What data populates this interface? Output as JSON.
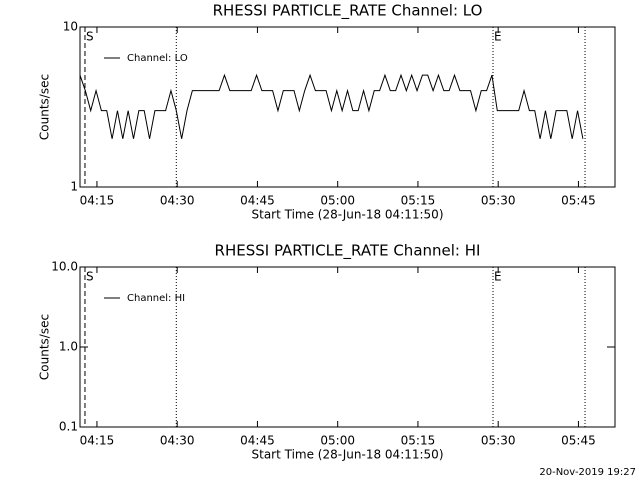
{
  "chart_data": [
    {
      "type": "line",
      "title": "RHESSI PARTICLE_RATE Channel: LO",
      "xlabel": "Start Time (28-Jun-18 04:11:50)",
      "ylabel": "Counts/sec",
      "xlim": [
        0,
        100
      ],
      "xticks": [
        {
          "value": 3.1667,
          "label": "04:15"
        },
        {
          "value": 18.1667,
          "label": "04:30"
        },
        {
          "value": 33.1667,
          "label": "04:45"
        },
        {
          "value": 48.1667,
          "label": "05:00"
        },
        {
          "value": 63.1667,
          "label": "05:15"
        },
        {
          "value": 78.1667,
          "label": "05:30"
        },
        {
          "value": 93.1667,
          "label": "05:45"
        }
      ],
      "ylim": [
        1,
        10
      ],
      "yticks": [
        1,
        10
      ],
      "log_y": true,
      "markers": [
        {
          "x": 0.93,
          "label": "S",
          "style": "dashed"
        },
        {
          "x": 18,
          "style": "dotted"
        },
        {
          "x": 77.2,
          "label": "E",
          "style": "dotted"
        },
        {
          "x": 94.4,
          "style": "dotted"
        }
      ],
      "x": [
        0,
        1,
        2,
        3,
        4,
        5,
        6,
        7,
        8,
        9,
        10,
        11,
        12,
        13,
        14,
        15,
        16,
        17,
        18,
        19,
        20,
        21,
        22,
        23,
        24,
        25,
        26,
        27,
        28,
        29,
        30,
        31,
        32,
        33,
        34,
        35,
        36,
        37,
        38,
        39,
        40,
        41,
        42,
        43,
        44,
        45,
        46,
        47,
        48,
        49,
        50,
        51,
        52,
        53,
        54,
        55,
        56,
        57,
        58,
        59,
        60,
        61,
        62,
        63,
        64,
        65,
        66,
        67,
        68,
        69,
        70,
        71,
        72,
        73,
        74,
        75,
        76,
        77,
        78,
        79,
        80,
        81,
        82,
        83,
        84,
        85,
        86,
        87,
        88,
        89,
        90,
        91,
        92,
        93,
        94
      ],
      "series": [
        {
          "name": "Channel: LO",
          "color": "#000000",
          "values": [
            5,
            4,
            3,
            4,
            3,
            3,
            2,
            3,
            2,
            3,
            2,
            3,
            3,
            2,
            3,
            3,
            3,
            4,
            3,
            2,
            3,
            4,
            4,
            4,
            4,
            4,
            4,
            5,
            4,
            4,
            4,
            4,
            4,
            5,
            4,
            4,
            4,
            3,
            4,
            4,
            4,
            3,
            4,
            5,
            4,
            4,
            4,
            3,
            4,
            3,
            4,
            3,
            3,
            4,
            3,
            4,
            4,
            5,
            4,
            4,
            5,
            4,
            5,
            4,
            5,
            5,
            4,
            5,
            4,
            4,
            5,
            4,
            4,
            4,
            3,
            4,
            4,
            5,
            3,
            3,
            3,
            3,
            3,
            4,
            3,
            3,
            2,
            3,
            2,
            3,
            3,
            3,
            2,
            3,
            2
          ]
        }
      ]
    },
    {
      "type": "line",
      "title": "RHESSI PARTICLE_RATE Channel: HI",
      "xlabel": "Start Time (28-Jun-18 04:11:50)",
      "ylabel": "Counts/sec",
      "xlim": [
        0,
        100
      ],
      "xticks": [
        {
          "value": 3.1667,
          "label": "04:15"
        },
        {
          "value": 18.1667,
          "label": "04:30"
        },
        {
          "value": 33.1667,
          "label": "04:45"
        },
        {
          "value": 48.1667,
          "label": "05:00"
        },
        {
          "value": 63.1667,
          "label": "05:15"
        },
        {
          "value": 78.1667,
          "label": "05:30"
        },
        {
          "value": 93.1667,
          "label": "05:45"
        }
      ],
      "ylim": [
        0.1,
        10
      ],
      "yticks": [
        {
          "value": 0.1,
          "label": "0.1"
        },
        {
          "value": 1,
          "label": "1.0"
        },
        {
          "value": 10,
          "label": "10.0"
        }
      ],
      "log_y": true,
      "markers": [
        {
          "x": 0.93,
          "label": "S",
          "style": "dashed"
        },
        {
          "x": 18,
          "style": "dotted"
        },
        {
          "x": 77.2,
          "label": "E",
          "style": "dotted"
        },
        {
          "x": 94.4,
          "style": "dotted"
        }
      ],
      "x": [],
      "series": [
        {
          "name": "Channel: HI",
          "color": "#000000",
          "values": []
        }
      ]
    }
  ],
  "footer": "20-Nov-2019 19:27"
}
